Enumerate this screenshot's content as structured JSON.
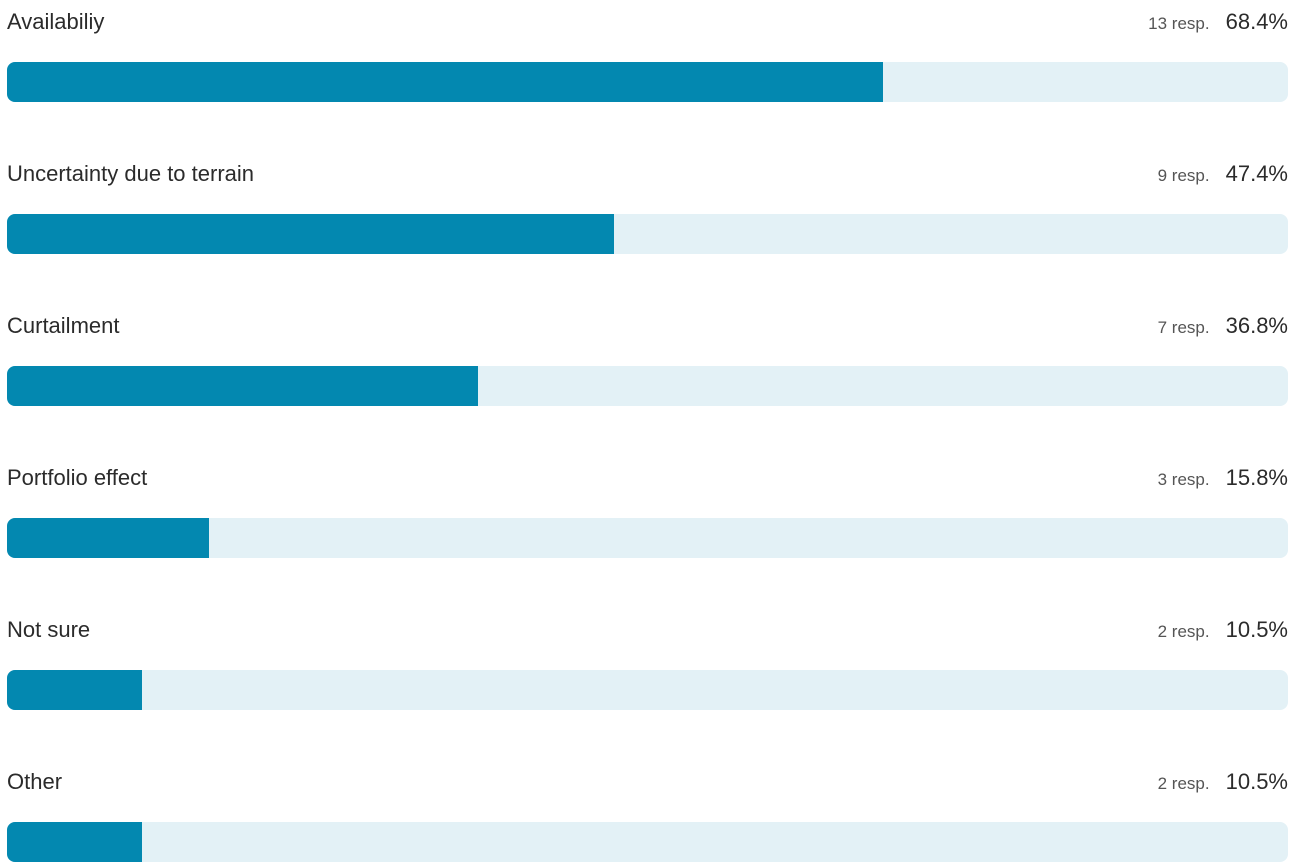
{
  "colors": {
    "bar_fill": "#0388b0",
    "bar_track": "#e3f1f6"
  },
  "chart_data": {
    "type": "bar",
    "orientation": "horizontal",
    "value_unit": "percent",
    "xlim": [
      0,
      100
    ],
    "categories": [
      "Availabiliy",
      "Uncertainty due to terrain",
      "Curtailment",
      "Portfolio effect",
      "Not sure",
      "Other"
    ],
    "values": [
      68.4,
      47.4,
      36.8,
      15.8,
      10.5,
      10.5
    ],
    "responses": [
      13,
      9,
      7,
      3,
      2,
      2
    ],
    "rows": [
      {
        "label": "Availabiliy",
        "resp_text": "13 resp.",
        "pct_text": "68.4%",
        "value": 68.4
      },
      {
        "label": "Uncertainty due to terrain",
        "resp_text": "9 resp.",
        "pct_text": "47.4%",
        "value": 47.4
      },
      {
        "label": "Curtailment",
        "resp_text": "7 resp.",
        "pct_text": "36.8%",
        "value": 36.8
      },
      {
        "label": "Portfolio effect",
        "resp_text": "3 resp.",
        "pct_text": "15.8%",
        "value": 15.8
      },
      {
        "label": "Not sure",
        "resp_text": "2 resp.",
        "pct_text": "10.5%",
        "value": 10.5
      },
      {
        "label": "Other",
        "resp_text": "2 resp.",
        "pct_text": "10.5%",
        "value": 10.5
      }
    ]
  }
}
